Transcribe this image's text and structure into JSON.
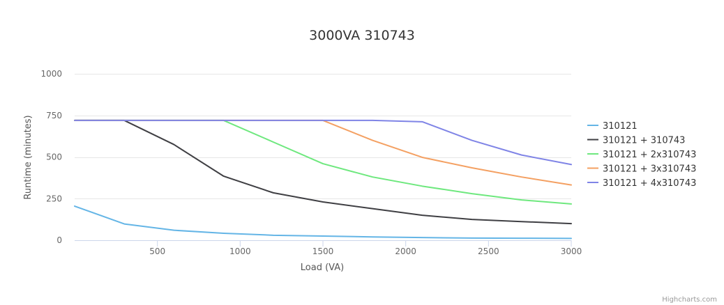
{
  "chart_data": {
    "type": "line",
    "title": "3000VA 310743",
    "xlabel": "Load (VA)",
    "ylabel": "Runtime (minutes)",
    "xlim": [
      0,
      3000
    ],
    "ylim": [
      0,
      1000
    ],
    "x_ticks": [
      500,
      1000,
      1500,
      2000,
      2500,
      3000
    ],
    "y_ticks": [
      0,
      250,
      500,
      750,
      1000
    ],
    "grid": true,
    "legend_position": "right",
    "x": [
      0,
      300,
      600,
      900,
      1200,
      1500,
      1800,
      2100,
      2400,
      2700,
      3000
    ],
    "series": [
      {
        "name": "310121",
        "color": "#64b5e6",
        "values": [
          205,
          98,
          60,
          42,
          30,
          25,
          20,
          16,
          13,
          12,
          11
        ]
      },
      {
        "name": "310121 + 310743",
        "color": "#3f3f43",
        "values": [
          720,
          720,
          575,
          385,
          285,
          230,
          190,
          150,
          125,
          112,
          100
        ]
      },
      {
        "name": "310121 + 2x310743",
        "color": "#6ee87e",
        "values": [
          720,
          720,
          720,
          720,
          590,
          460,
          380,
          325,
          280,
          242,
          218
        ]
      },
      {
        "name": "310121 + 3x310743",
        "color": "#f4a062",
        "values": [
          720,
          720,
          720,
          720,
          720,
          720,
          600,
          498,
          435,
          380,
          332
        ]
      },
      {
        "name": "310121 + 4x310743",
        "color": "#7f84e6",
        "values": [
          720,
          720,
          720,
          720,
          720,
          720,
          720,
          712,
          600,
          512,
          455
        ]
      }
    ]
  },
  "credits": "Highcharts.com"
}
